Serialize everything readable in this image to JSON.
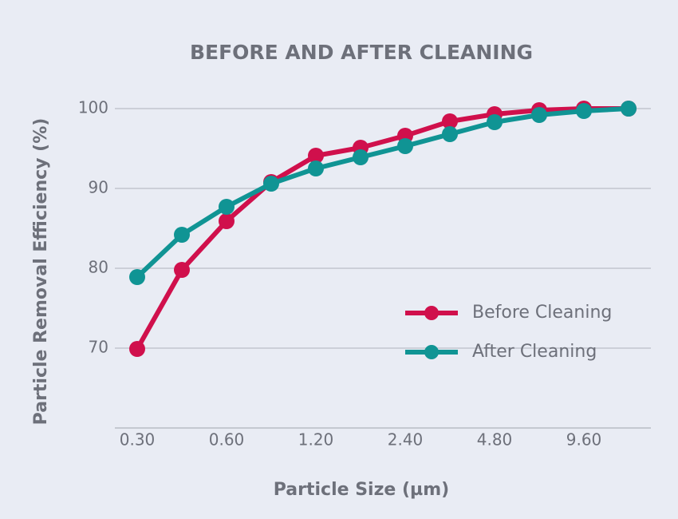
{
  "chart_data": {
    "type": "line",
    "title": "BEFORE AND AFTER CLEANING",
    "x_label": "Particle Size (µm)",
    "y_label": "Particle Removal Efficiency (%)",
    "categories": [
      "0.30",
      null,
      "0.60",
      null,
      "1.20",
      null,
      "2.40",
      null,
      "4.80",
      null,
      "9.60",
      null
    ],
    "series": [
      {
        "name": "Before Cleaning",
        "color": "#d0104c",
        "values": [
          69.9,
          79.8,
          85.9,
          90.8,
          94.1,
          95.1,
          96.6,
          98.4,
          99.3,
          99.8,
          100,
          100
        ]
      },
      {
        "name": "After Cleaning",
        "color": "#109494",
        "values": [
          78.9,
          84.2,
          87.7,
          90.6,
          92.5,
          93.9,
          95.3,
          96.8,
          98.3,
          99.2,
          99.7,
          100
        ]
      }
    ],
    "ylim": [
      60,
      100
    ],
    "yticks": [
      70,
      80,
      90,
      100
    ],
    "grid": true,
    "legend": "center right"
  }
}
